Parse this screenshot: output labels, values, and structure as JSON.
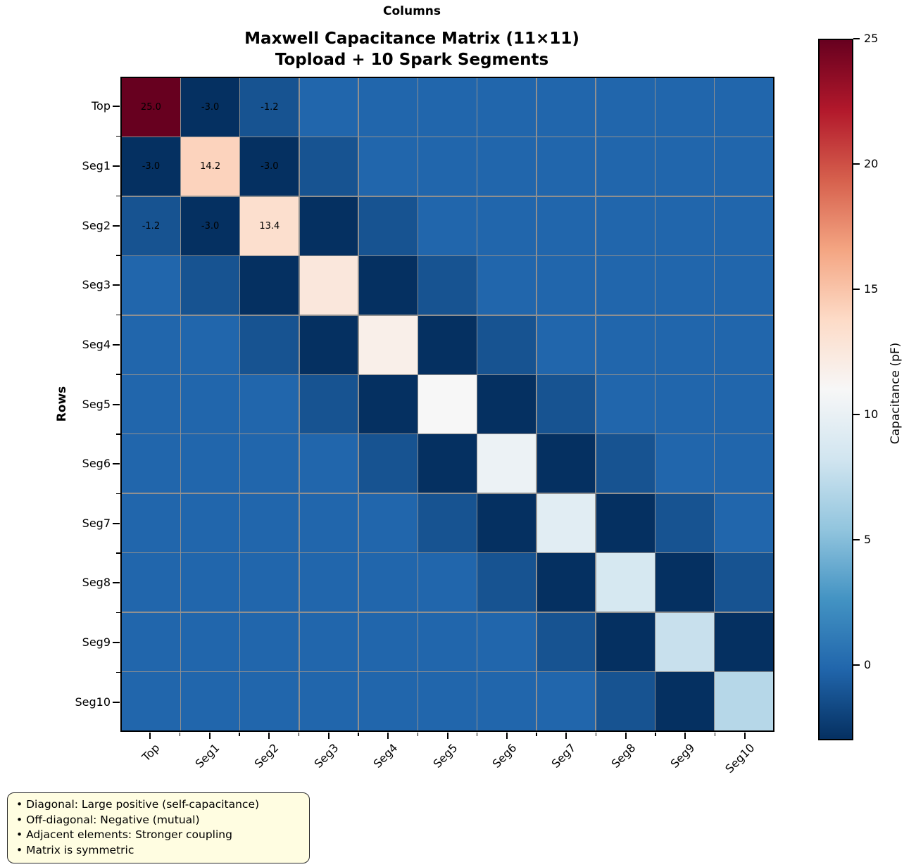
{
  "titles": {
    "xlabel_top": "Columns",
    "line1": "Maxwell Capacitance Matrix (11×11)",
    "line2": "Topload + 10 Spark Segments",
    "ylabel": "Rows"
  },
  "chart_data": {
    "type": "heatmap",
    "title": "Maxwell Capacitance Matrix (11×11) — Topload + 10 Spark Segments",
    "xlabel": "Columns",
    "ylabel": "Rows",
    "categories": [
      "Top",
      "Seg1",
      "Seg2",
      "Seg3",
      "Seg4",
      "Seg5",
      "Seg6",
      "Seg7",
      "Seg8",
      "Seg9",
      "Seg10"
    ],
    "matrix": [
      [
        25.0,
        -3.0,
        -1.2,
        -0.2,
        -0.2,
        -0.2,
        -0.2,
        -0.2,
        -0.2,
        -0.2,
        -0.2
      ],
      [
        -3.0,
        14.2,
        -3.0,
        -1.2,
        -0.2,
        -0.2,
        -0.2,
        -0.2,
        -0.2,
        -0.2,
        -0.2
      ],
      [
        -1.2,
        -3.0,
        13.4,
        -3.0,
        -1.2,
        -0.2,
        -0.2,
        -0.2,
        -0.2,
        -0.2,
        -0.2
      ],
      [
        -0.2,
        -1.2,
        -3.0,
        12.6,
        -3.0,
        -1.2,
        -0.2,
        -0.2,
        -0.2,
        -0.2,
        -0.2
      ],
      [
        -0.2,
        -0.2,
        -1.2,
        -3.0,
        11.8,
        -3.0,
        -1.2,
        -0.2,
        -0.2,
        -0.2,
        -0.2
      ],
      [
        -0.2,
        -0.2,
        -0.2,
        -1.2,
        -3.0,
        11.0,
        -3.0,
        -1.2,
        -0.2,
        -0.2,
        -0.2
      ],
      [
        -0.2,
        -0.2,
        -0.2,
        -0.2,
        -1.2,
        -3.0,
        10.2,
        -3.0,
        -1.2,
        -0.2,
        -0.2
      ],
      [
        -0.2,
        -0.2,
        -0.2,
        -0.2,
        -0.2,
        -1.2,
        -3.0,
        9.4,
        -3.0,
        -1.2,
        -0.2
      ],
      [
        -0.2,
        -0.2,
        -0.2,
        -0.2,
        -0.2,
        -0.2,
        -1.2,
        -3.0,
        8.6,
        -3.0,
        -1.2
      ],
      [
        -0.2,
        -0.2,
        -0.2,
        -0.2,
        -0.2,
        -0.2,
        -0.2,
        -1.2,
        -3.0,
        7.8,
        -3.0
      ],
      [
        -0.2,
        -0.2,
        -0.2,
        -0.2,
        -0.2,
        -0.2,
        -0.2,
        -0.2,
        -1.2,
        -3.0,
        7.0
      ]
    ],
    "annotated_rows": 3,
    "annotated_cols": 3,
    "annotations_shown": [
      "25.0",
      "-3.0",
      "-1.2",
      "-3.0",
      "14.2",
      "-3.0",
      "-1.2",
      "-3.0",
      "13.4"
    ],
    "vmin": -3,
    "vmax": 25,
    "colormap": "RdBu_r",
    "colormap_anchors": [
      "#053061",
      "#2166ac",
      "#4393c3",
      "#92c5de",
      "#d1e5f0",
      "#f7f7f7",
      "#fddbc7",
      "#f4a582",
      "#d6604d",
      "#b2182b",
      "#67001f"
    ],
    "gridline_color": "#909090",
    "colorbar": {
      "label": "Capacitance (pF)",
      "ticks": [
        0,
        5,
        10,
        15,
        20,
        25
      ]
    },
    "legend_position": "right-colorbar",
    "grid": true
  },
  "notes_box": {
    "items": [
      "Diagonal: Large positive (self-capacitance)",
      "Off-diagonal: Negative (mutual)",
      "Adjacent elements: Stronger coupling",
      "Matrix is symmetric"
    ]
  }
}
